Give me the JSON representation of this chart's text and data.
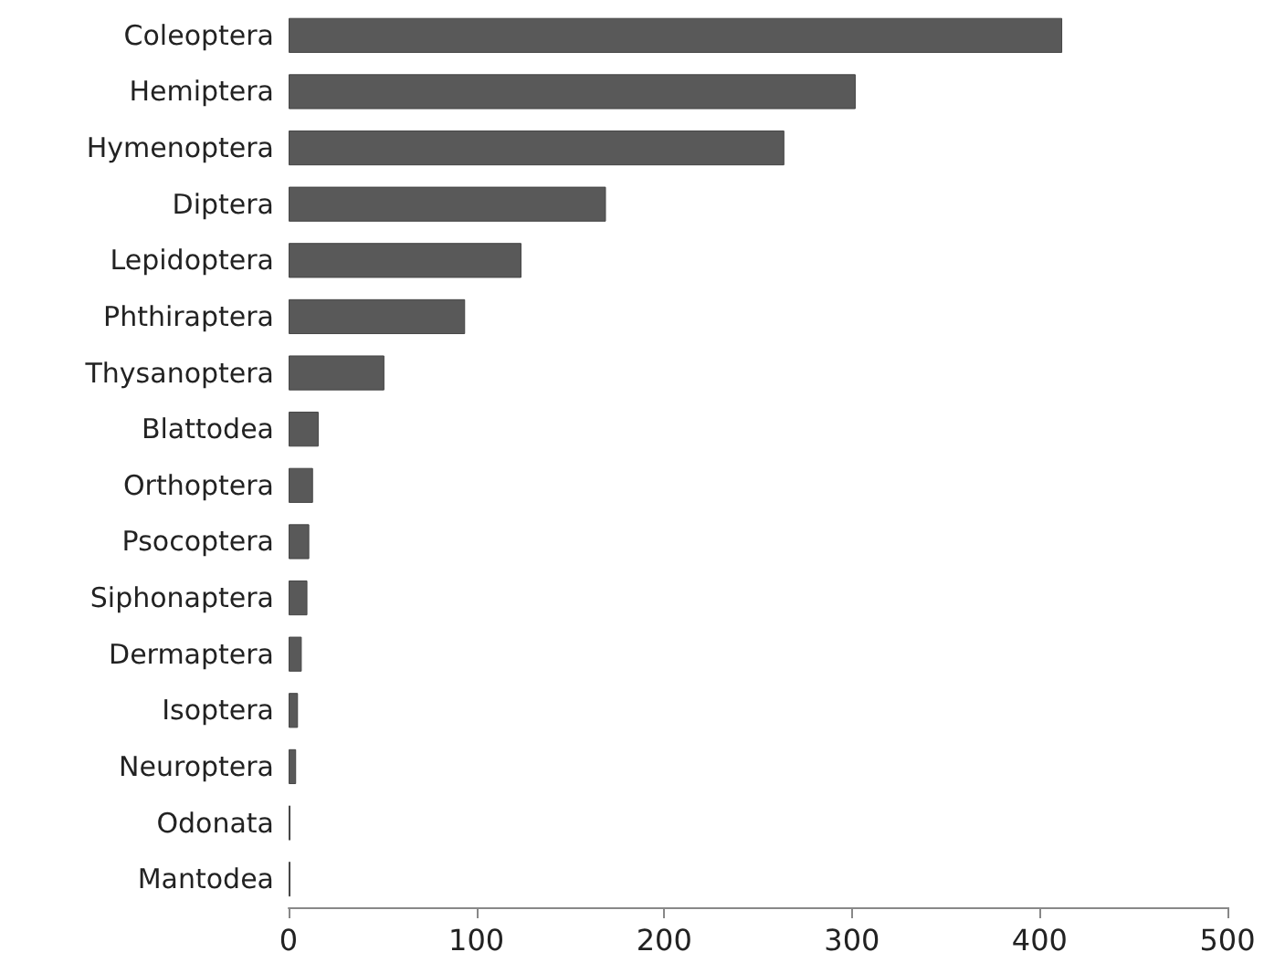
{
  "chart_data": {
    "type": "bar",
    "orientation": "horizontal",
    "categories": [
      "Coleoptera",
      "Hemiptera",
      "Hymenoptera",
      "Diptera",
      "Lepidoptera",
      "Phthiraptera",
      "Thysanoptera",
      "Blattodea",
      "Orthoptera",
      "Psocoptera",
      "Siphonaptera",
      "Dermaptera",
      "Isoptera",
      "Neuroptera",
      "Odonata",
      "Mantodea"
    ],
    "values": [
      412,
      302,
      264,
      169,
      124,
      94,
      51,
      16,
      13,
      11,
      10,
      7,
      5,
      4,
      1,
      1
    ],
    "color": "#595959",
    "xlim": [
      0,
      500
    ],
    "xticks": [
      0,
      100,
      200,
      300,
      400,
      500
    ],
    "grid": false
  }
}
